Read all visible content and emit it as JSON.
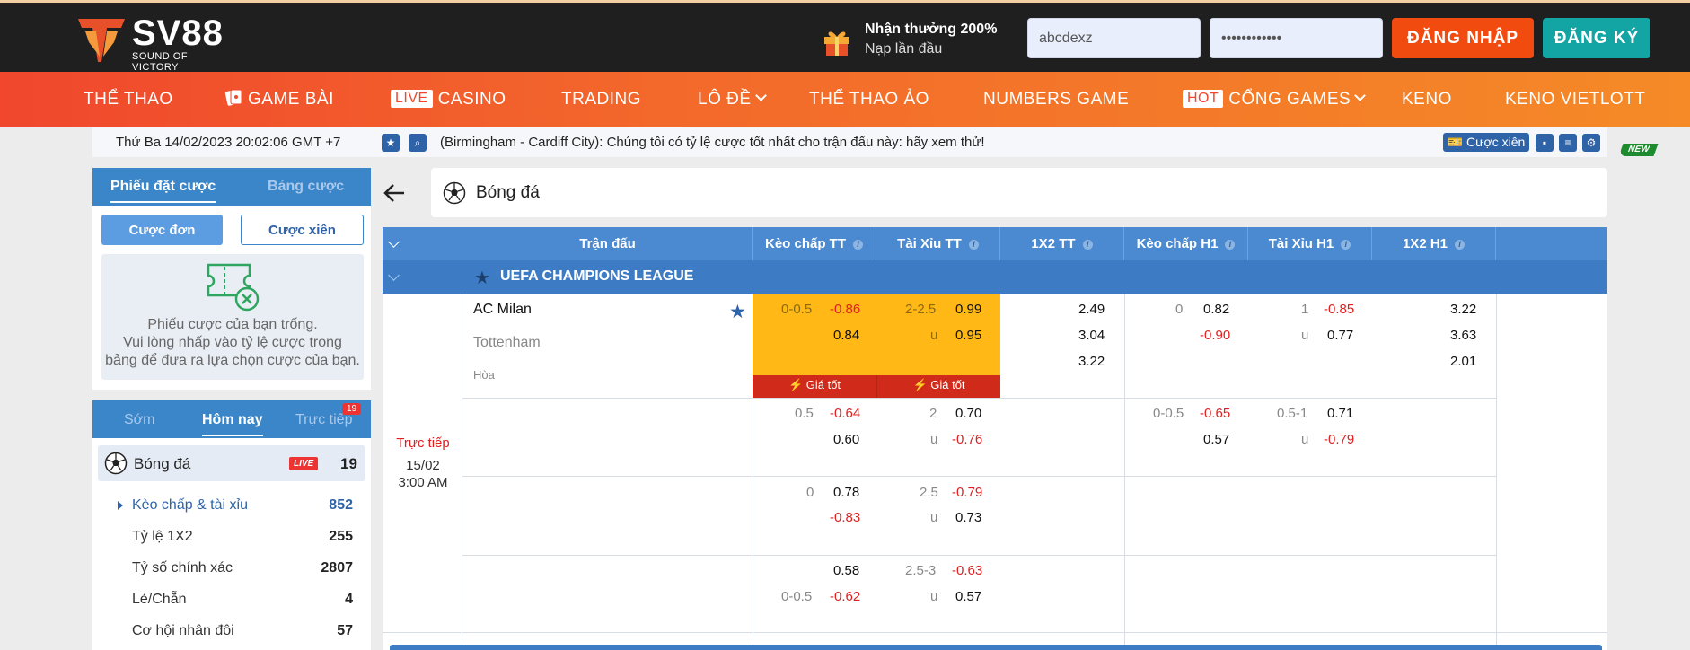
{
  "header": {
    "logo_text": "SV88",
    "logo_sub": "SOUND OF VICTORY",
    "promo_title": "Nhận thưởng 200%",
    "promo_sub": "Nạp lần đầu",
    "username_value": "abcdexz",
    "password_value": "••••••••••••",
    "login_label": "ĐĂNG NHẬP",
    "register_label": "ĐĂNG KÝ"
  },
  "nav": {
    "new_badge": "NEW",
    "live_tag": "LIVE",
    "hot_tag": "HOT",
    "items": [
      "THỂ THAO",
      "GAME BÀI",
      "CASINO",
      "TRADING",
      "LÔ ĐỀ",
      "THỂ THAO ẢO",
      "NUMBERS GAME",
      "CỔNG GAMES",
      "KENO",
      "KENO VIETLOTT"
    ]
  },
  "ticker": {
    "datetime": "Thứ Ba 14/02/2023 20:02:06 GMT +7",
    "message": "(Birmingham - Cardiff City): Chúng tôi có tỷ lệ cược tốt nhất cho trận đấu này: hãy xem thử!",
    "multi_button": "Cược xiên"
  },
  "betslip": {
    "tabs": [
      "Phiếu đặt cược",
      "Bảng cược"
    ],
    "single_label": "Cược đơn",
    "multi_label": "Cược xiên",
    "empty_line1": "Phiếu cược của bạn trống.",
    "empty_line2": "Vui lòng nhấp vào tỷ lệ cược trong",
    "empty_line3": "bảng để đưa ra lựa chọn cược của bạn."
  },
  "sports_menu": {
    "tabs": [
      "Sớm",
      "Hôm nay",
      "Trực tiếp"
    ],
    "live_count": "19",
    "sport_name": "Bóng đá",
    "live_badge": "LIVE",
    "sport_count": "19",
    "sub_items": [
      {
        "label": "Kèo chấp & tài xỉu",
        "count": "852"
      },
      {
        "label": "Tỷ lệ 1X2",
        "count": "255"
      },
      {
        "label": "Tỷ số chính xác",
        "count": "2807"
      },
      {
        "label": "Lẻ/Chẵn",
        "count": "4"
      },
      {
        "label": "Cơ hội nhân đôi",
        "count": "57"
      }
    ]
  },
  "main": {
    "sport_title": "Bóng đá",
    "columns": [
      "Trận đấu",
      "Kèo chấp TT",
      "Tài Xỉu TT",
      "1X2 TT",
      "Kèo chấp H1",
      "Tài Xỉu H1",
      "1X2 H1"
    ],
    "league": "UEFA CHAMPIONS LEAGUE",
    "match": {
      "status": "Trực tiếp",
      "date": "15/02",
      "time": "3:00 AM",
      "home": "AC Milan",
      "away": "Tottenham",
      "draw": "Hòa",
      "best_odds": "Giá tốt"
    },
    "rows": [
      {
        "ah_line": "0-0.5",
        "ah_home": "-0.86",
        "ah_away": "0.84",
        "ou_line": "2-2.5",
        "ou_under": "u",
        "ou_over": "0.99",
        "ou_u": "0.95",
        "x12_1": "2.49",
        "x12_2": "3.04",
        "x12_x": "3.22",
        "h1_ah_line": "0",
        "h1_ah_home": "0.82",
        "h1_ah_away": "-0.90",
        "h1_ou_line": "1",
        "h1_ou_under": "u",
        "h1_ou_over": "-0.85",
        "h1_ou_u": "0.77",
        "h1_x12_1": "3.22",
        "h1_x12_2": "3.63",
        "h1_x12_x": "2.01"
      },
      {
        "ah_line": "0.5",
        "ah_home": "-0.64",
        "ah_away": "0.60",
        "ou_line": "2",
        "ou_under": "u",
        "ou_over": "0.70",
        "ou_u": "-0.76",
        "h1_ah_line": "0-0.5",
        "h1_ah_home": "-0.65",
        "h1_ah_away": "0.57",
        "h1_ou_line": "0.5-1",
        "h1_ou_under": "u",
        "h1_ou_over": "0.71",
        "h1_ou_u": "-0.79"
      },
      {
        "ah_line": "0",
        "ah_home": "0.78",
        "ah_away": "-0.83",
        "ou_line": "2.5",
        "ou_under": "u",
        "ou_over": "-0.79",
        "ou_u": "0.73"
      },
      {
        "ah_line": "0-0.5",
        "ah_home": "0.58",
        "ah_away": "-0.62",
        "ou_line": "2.5-3",
        "ou_under": "u",
        "ou_over": "-0.63",
        "ou_u": "0.57"
      }
    ]
  }
}
